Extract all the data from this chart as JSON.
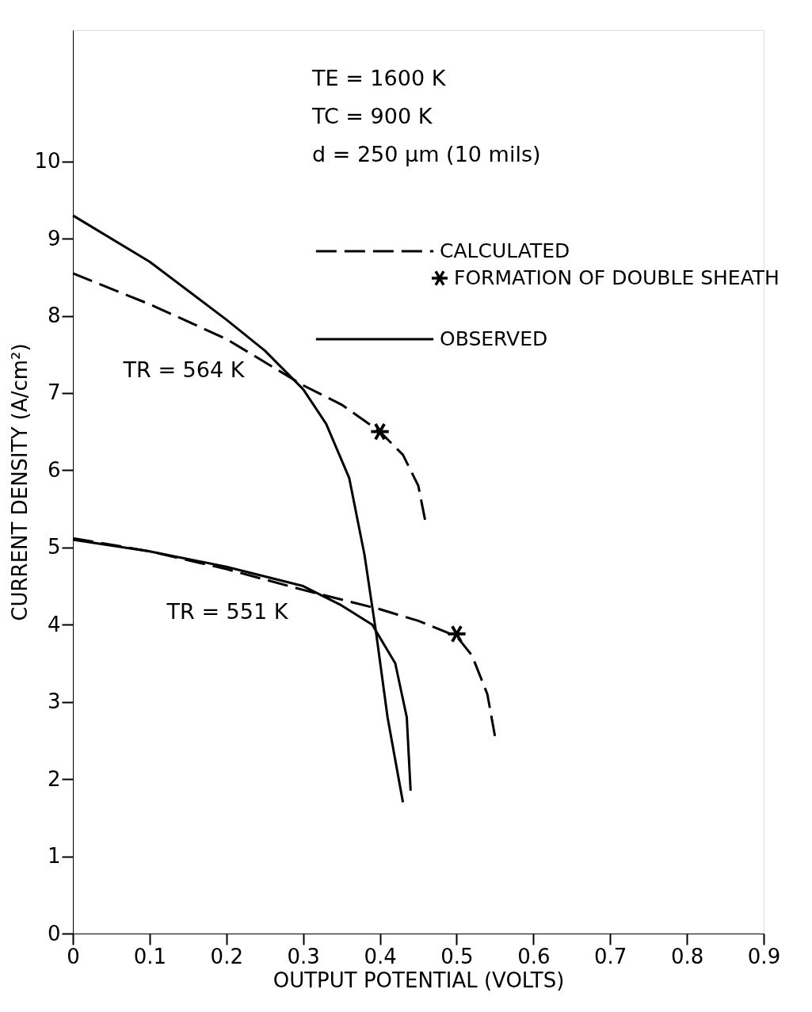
{
  "chart_data": {
    "type": "line",
    "xlabel": "OUTPUT POTENTIAL (VOLTS)",
    "ylabel": "CURRENT DENSITY (A/cm²)",
    "xlim": [
      0,
      0.9
    ],
    "xticks": [
      0,
      0.1,
      0.2,
      0.3,
      0.4,
      0.5,
      0.6,
      0.7,
      0.8,
      0.9
    ],
    "ylim": [
      0,
      11.7
    ],
    "yticks": [
      0,
      1,
      2,
      3,
      4,
      5,
      6,
      7,
      8,
      9,
      10
    ],
    "grid": false,
    "legend": "top right",
    "series": [
      {
        "name": "CALCULATED",
        "color": "#000000",
        "line_style": "dashed",
        "x": [
          0,
          0.1,
          0.2,
          0.3,
          0.35,
          0.4,
          0.43,
          0.45,
          0.46
        ],
        "values": [
          8.55,
          8.15,
          7.7,
          7.1,
          6.85,
          6.5,
          6.2,
          5.8,
          5.3
        ]
      },
      {
        "name": "OBSERVED",
        "color": "#000000",
        "line_style": "solid",
        "x": [
          0,
          0.1,
          0.2,
          0.25,
          0.3,
          0.33,
          0.36,
          0.38,
          0.395,
          0.41,
          0.43
        ],
        "values": [
          9.3,
          8.7,
          7.95,
          7.55,
          7.05,
          6.6,
          5.9,
          4.9,
          3.9,
          2.8,
          1.7
        ]
      },
      {
        "color": "#000000",
        "line_style": "dashed",
        "x": [
          0,
          0.1,
          0.2,
          0.3,
          0.4,
          0.45,
          0.5,
          0.52,
          0.54,
          0.55
        ],
        "values": [
          5.12,
          4.95,
          4.72,
          4.45,
          4.2,
          4.05,
          3.85,
          3.6,
          3.1,
          2.55
        ]
      },
      {
        "color": "#000000",
        "line_style": "solid",
        "x": [
          0,
          0.1,
          0.2,
          0.3,
          0.35,
          0.39,
          0.42,
          0.435,
          0.44
        ],
        "values": [
          5.1,
          4.95,
          4.75,
          4.5,
          4.25,
          4.0,
          3.5,
          2.8,
          1.85
        ]
      },
      {
        "name": "FORMATION OF DOUBLE SHEATH",
        "type": "scatter",
        "marker": "cross",
        "color": "#000000",
        "x": [
          0.4,
          0.5
        ],
        "values": [
          6.5,
          3.88
        ]
      }
    ],
    "annotations": [
      "TE = 1600 K",
      "TC = 900 K",
      "d = 250 μm (10 mils)",
      "TR = 564 K",
      "TR = 551 K"
    ]
  }
}
